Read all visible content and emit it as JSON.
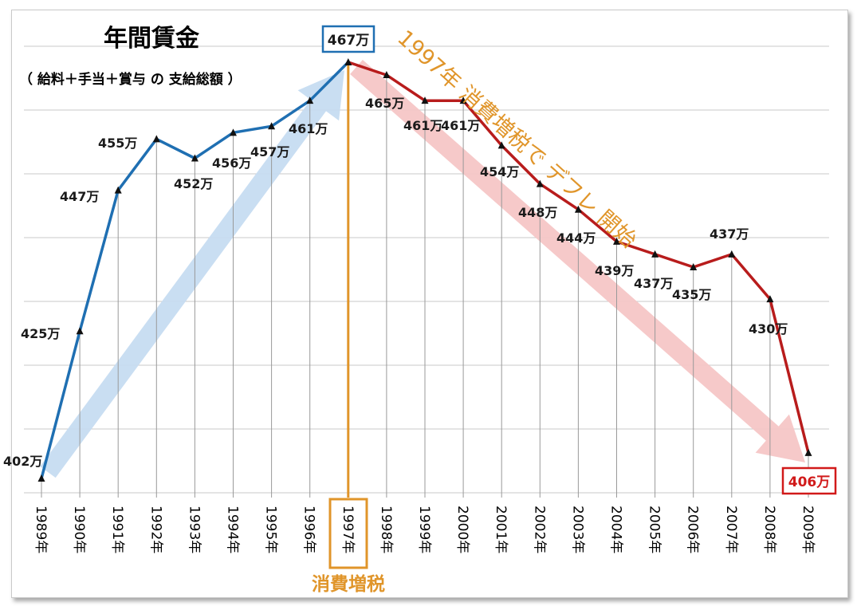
{
  "chart_data": {
    "type": "line",
    "title": "年間賃金",
    "subtitle": "（ 給料＋手当＋賞与 の 支給総額 ）",
    "unit_suffix": "万",
    "categories": [
      "1989年",
      "1990年",
      "1991年",
      "1992年",
      "1993年",
      "1994年",
      "1995年",
      "1996年",
      "1997年",
      "1998年",
      "1999年",
      "2000年",
      "2001年",
      "2002年",
      "2003年",
      "2004年",
      "2005年",
      "2006年",
      "2007年",
      "2008年",
      "2009年"
    ],
    "values": [
      402,
      425,
      447,
      455,
      452,
      456,
      457,
      461,
      467,
      465,
      461,
      461,
      454,
      448,
      444,
      439,
      437,
      435,
      437,
      430,
      406
    ],
    "ylim": [
      396,
      470
    ],
    "series": [
      {
        "name": "1989-1997",
        "from": 0,
        "to": 8,
        "color": "#1f6fb2"
      },
      {
        "name": "1997-2009",
        "from": 8,
        "to": 20,
        "color": "#b81c1c"
      }
    ],
    "annotations": {
      "peak_label": "467万",
      "end_label": "406万",
      "tax_year_label": "1997年",
      "tax_label": "消費増税",
      "deflation_label": "1997年 消費増税で デフレ 開始"
    },
    "colors": {
      "rise": "#1f6fb2",
      "fall": "#b81c1c",
      "rise_arrow": "#c6dcf1",
      "fall_arrow": "#f6c6c6",
      "accent": "#e0952a",
      "grid": "#c8c8c8"
    }
  }
}
